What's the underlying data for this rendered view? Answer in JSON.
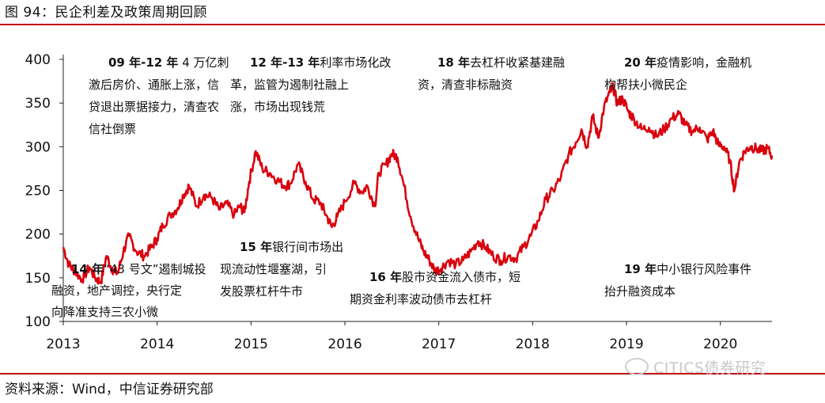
{
  "header": {
    "title": "图 94：民企利差及政策周期回顾"
  },
  "footer": {
    "source": "资料来源：Wind，中信证券研究部",
    "watermark": "CITICS债券研究"
  },
  "colors": {
    "line": "#d9000d",
    "rule": "#c0000f",
    "axis": "#222222"
  },
  "chart_data": {
    "type": "line",
    "title": "",
    "xlabel": "",
    "ylabel": "",
    "xlim": [
      2013.0,
      2020.55
    ],
    "ylim": [
      100,
      400
    ],
    "yticks": [
      "100",
      "150",
      "200",
      "250",
      "300",
      "350",
      "400"
    ],
    "xticks": [
      "2013",
      "2014",
      "2015",
      "2016",
      "2017",
      "2018",
      "2019",
      "2020"
    ],
    "grid": false,
    "legend": "none",
    "series": [
      {
        "name": "",
        "x": [
          2013.0,
          2013.06,
          2013.12,
          2013.2,
          2013.28,
          2013.34,
          2013.4,
          2013.46,
          2013.52,
          2013.58,
          2013.64,
          2013.7,
          2013.78,
          2013.86,
          2013.94,
          2014.0,
          2014.06,
          2014.14,
          2014.22,
          2014.28,
          2014.34,
          2014.42,
          2014.5,
          2014.58,
          2014.66,
          2014.74,
          2014.82,
          2014.88,
          2014.93,
          2014.98,
          2015.05,
          2015.12,
          2015.2,
          2015.28,
          2015.36,
          2015.42,
          2015.5,
          2015.58,
          2015.66,
          2015.74,
          2015.8,
          2015.86,
          2015.92,
          2016.0,
          2016.1,
          2016.18,
          2016.24,
          2016.32,
          2016.36,
          2016.44,
          2016.5,
          2016.56,
          2016.62,
          2016.7,
          2016.78,
          2016.84,
          2016.9,
          2016.96,
          2017.02,
          2017.1,
          2017.18,
          2017.26,
          2017.34,
          2017.42,
          2017.5,
          2017.58,
          2017.66,
          2017.74,
          2017.82,
          2017.9,
          2017.98,
          2018.06,
          2018.14,
          2018.22,
          2018.3,
          2018.38,
          2018.46,
          2018.52,
          2018.58,
          2018.64,
          2018.7,
          2018.76,
          2018.82,
          2018.86,
          2018.9,
          2018.96,
          2019.02,
          2019.08,
          2019.16,
          2019.24,
          2019.32,
          2019.4,
          2019.48,
          2019.56,
          2019.62,
          2019.7,
          2019.78,
          2019.86,
          2019.92,
          2019.98,
          2020.04,
          2020.1,
          2020.15,
          2020.2,
          2020.26,
          2020.32,
          2020.38,
          2020.44,
          2020.5,
          2020.55
        ],
        "values": [
          185,
          165,
          158,
          148,
          162,
          150,
          145,
          175,
          160,
          155,
          180,
          198,
          180,
          175,
          185,
          195,
          210,
          222,
          230,
          245,
          255,
          232,
          245,
          242,
          228,
          235,
          222,
          232,
          225,
          260,
          295,
          275,
          270,
          262,
          255,
          258,
          280,
          260,
          240,
          236,
          222,
          208,
          220,
          237,
          258,
          248,
          255,
          232,
          270,
          280,
          292,
          288,
          260,
          220,
          195,
          180,
          170,
          158,
          160,
          170,
          165,
          170,
          180,
          192,
          185,
          175,
          170,
          175,
          172,
          185,
          198,
          215,
          240,
          250,
          265,
          290,
          305,
          320,
          300,
          335,
          310,
          345,
          362,
          368,
          350,
          355,
          340,
          332,
          320,
          322,
          312,
          320,
          332,
          338,
          325,
          318,
          322,
          308,
          318,
          302,
          300,
          285,
          250,
          282,
          295,
          300,
          298,
          295,
          298,
          290
        ]
      }
    ],
    "annotations": [
      {
        "lines": [
          [
            {
              "t": "09 年-12 年",
              "b": true
            },
            {
              "t": " 4 万亿刺"
            }
          ],
          [
            {
              "t": "激后房价、通胀上涨，信"
            }
          ],
          [
            {
              "t": "贷退出票据接力，清查农"
            }
          ],
          [
            {
              "t": "信社倒票"
            }
          ]
        ]
      },
      {
        "lines": [
          [
            {
              "t": "12 年-13 年",
              "b": true
            },
            {
              "t": "利率市场化改"
            }
          ],
          [
            {
              "t": "革，监管为遏制社融上"
            }
          ],
          [
            {
              "t": "涨，市场出现钱荒"
            }
          ]
        ]
      },
      {
        "lines": [
          [
            {
              "t": "18 年",
              "b": true
            },
            {
              "t": "去杠杆收紧基建融"
            }
          ],
          [
            {
              "t": "资，清查非标融资"
            }
          ]
        ]
      },
      {
        "lines": [
          [
            {
              "t": "20 年",
              "b": true
            },
            {
              "t": "疫情影响，金融机"
            }
          ],
          [
            {
              "t": "构帮扶小微民企"
            }
          ]
        ]
      },
      {
        "lines": [
          [
            {
              "t": "14 年",
              "b": true
            },
            {
              "t": "“43 号文”遏制城投"
            }
          ],
          [
            {
              "t": "融资，地产调控，央行定"
            }
          ],
          [
            {
              "t": "向降准支持三农小微"
            }
          ]
        ]
      },
      {
        "lines": [
          [
            {
              "t": "15 年",
              "b": true
            },
            {
              "t": "银行间市场出"
            }
          ],
          [
            {
              "t": "现流动性堰塞湖，引"
            }
          ],
          [
            {
              "t": "发股票杠杆牛市"
            }
          ]
        ]
      },
      {
        "lines": [
          [
            {
              "t": "16 年",
              "b": true
            },
            {
              "t": "股市资金流入债市，短"
            }
          ],
          [
            {
              "t": "期资金利率波动债市去杠杆"
            }
          ]
        ]
      },
      {
        "lines": [
          [
            {
              "t": "19 年",
              "b": true
            },
            {
              "t": "中小银行风险事件"
            }
          ],
          [
            {
              "t": "抬升融资成本"
            }
          ]
        ]
      }
    ]
  }
}
